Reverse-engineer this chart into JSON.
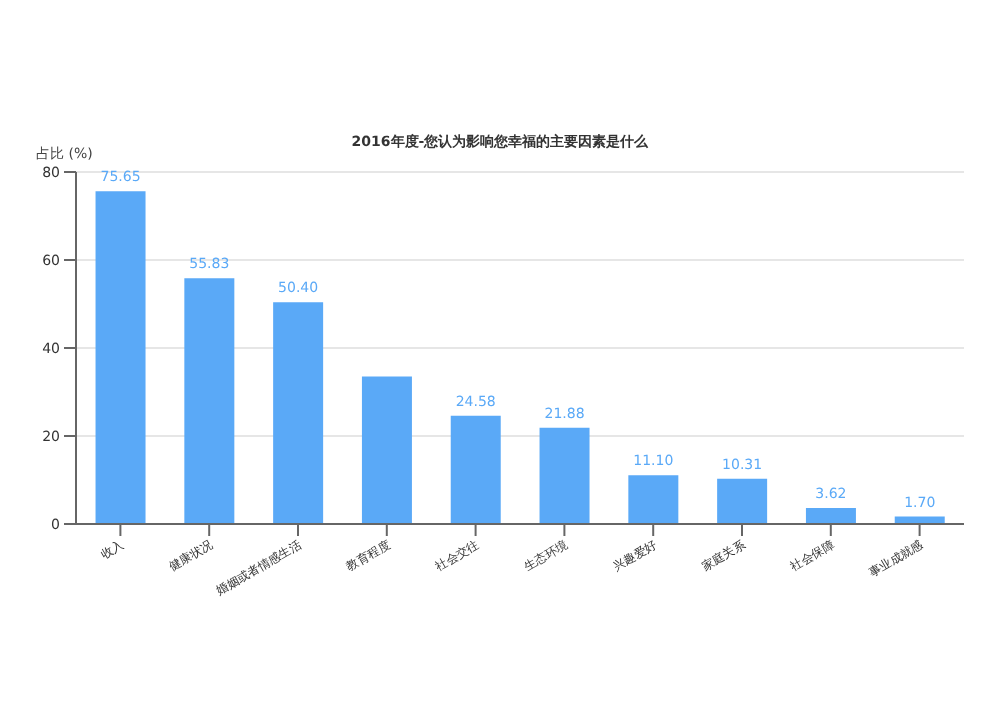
{
  "chart_data": {
    "type": "bar",
    "title": "2016年度-您认为影响您幸福的主要因素是什么",
    "ylabel": "占比 (%)",
    "categories": [
      "收入",
      "健康状况",
      "婚姻或者情感生活",
      "教育程度",
      "社会交往",
      "生态环境",
      "兴趣爱好",
      "家庭关系",
      "社会保障",
      "事业成就感"
    ],
    "values": [
      75.65,
      55.83,
      50.4,
      33.5,
      24.58,
      21.88,
      11.1,
      10.31,
      3.62,
      1.7
    ],
    "value_labels": [
      "75.65",
      "55.83",
      "50.40",
      null,
      "24.58",
      "21.88",
      "11.10",
      "10.31",
      "3.62",
      "1.70"
    ],
    "color": "#5aa9f7",
    "ylim": [
      0,
      80
    ],
    "yticks": [
      0,
      20,
      40,
      60,
      80
    ],
    "grid": "y"
  }
}
